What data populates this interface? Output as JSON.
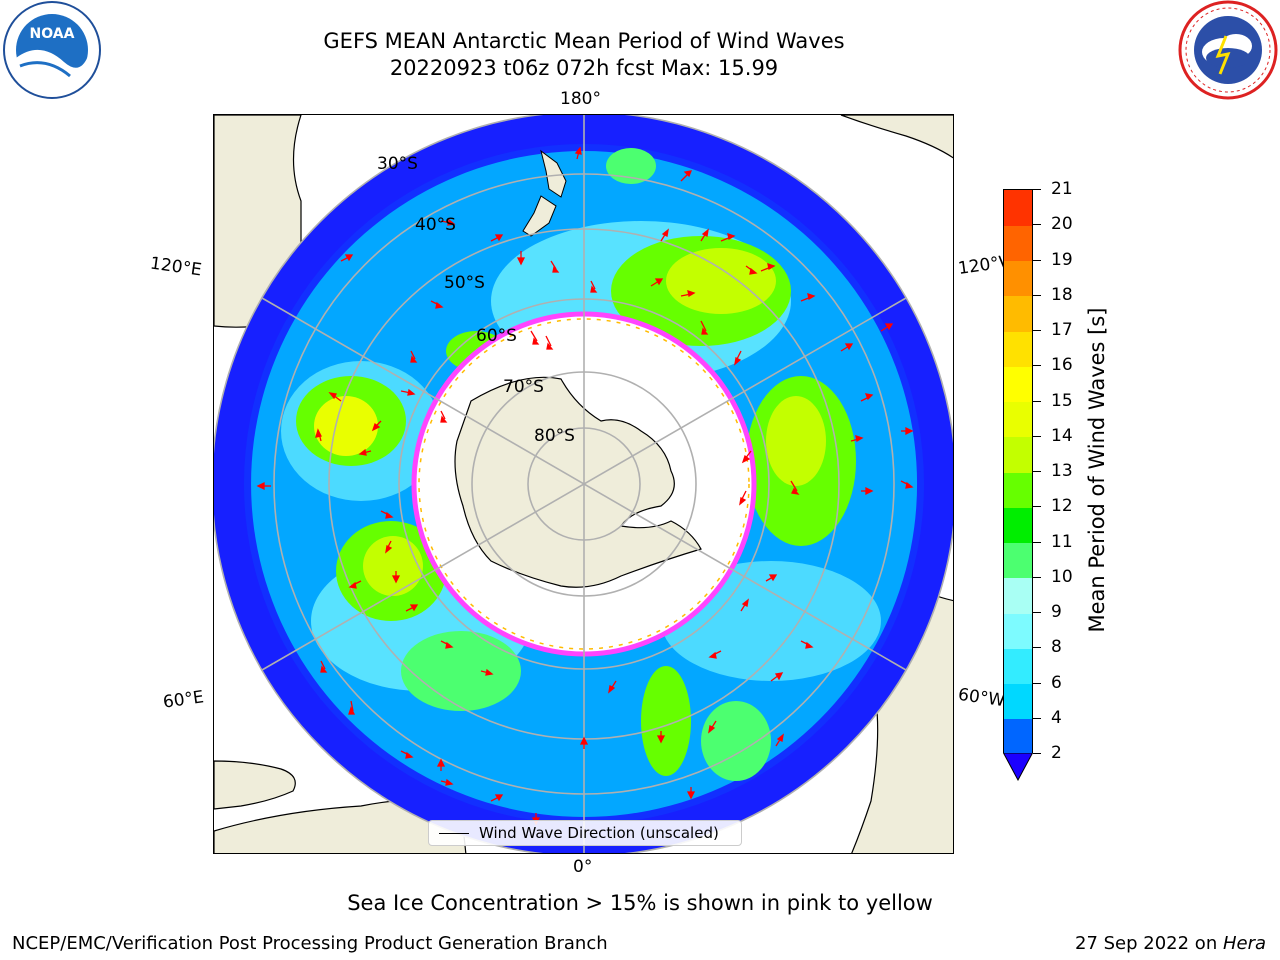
{
  "header": {
    "title_line1": "GEFS MEAN Antarctic Mean Period of Wind Waves",
    "title_line2": "20220923 t06z 072h fcst   Max: 15.99"
  },
  "logos": {
    "left": {
      "name": "noaa-logo",
      "text": "NOAA"
    },
    "right": {
      "name": "nws-logo",
      "text": "NATIONAL WEATHER SERVICE"
    }
  },
  "map": {
    "longitude_labels": {
      "top": "180°",
      "bottom": "0°",
      "left_upper": "120°E",
      "left_lower": "60°E",
      "right_upper": "120°W",
      "right_lower": "60°W"
    },
    "latitude_labels": [
      "30°S",
      "40°S",
      "50°S",
      "60°S",
      "70°S",
      "80°S"
    ],
    "colors": {
      "ocean_bg": "#ffffff",
      "land": "#efedda",
      "grid": "#b0b0b0",
      "arrow": "#ff0000",
      "ice_edge": "#ff44ff"
    }
  },
  "legend": {
    "label": "Wind Wave Direction (unscaled)"
  },
  "colorbar": {
    "label": "Mean Period of Wind Waves [s]",
    "ticks": [
      "2",
      "4",
      "6",
      "8",
      "9",
      "10",
      "11",
      "12",
      "13",
      "14",
      "15",
      "16",
      "17",
      "18",
      "19",
      "20",
      "21"
    ],
    "colors": [
      "#0066ff",
      "#00d8ff",
      "#33ecff",
      "#7dfbff",
      "#a9fff4",
      "#4cff70",
      "#00ee00",
      "#66ff00",
      "#c3ff00",
      "#e9ff00",
      "#ffff00",
      "#ffe100",
      "#ffbb00",
      "#ff9000",
      "#ff6400",
      "#ff3300"
    ],
    "underflow_color": "#1b00ff"
  },
  "subtitle": "Sea Ice Concentration > 15% is shown in pink to yellow",
  "footer": {
    "left": "NCEP/EMC/Verification Post Processing Product Generation Branch",
    "right_date": "27 Sep 2022 on ",
    "right_machine": "Hera"
  }
}
